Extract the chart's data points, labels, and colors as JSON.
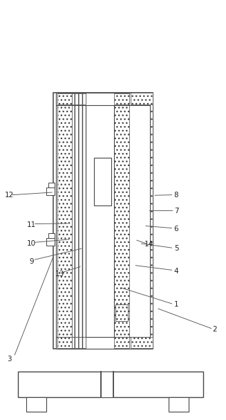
{
  "bg": "white",
  "lc": "#444444",
  "annotations": {
    "1": {
      "lp": [
        0.78,
        0.275
      ],
      "l1": [
        0.76,
        0.277
      ],
      "l2": [
        0.535,
        0.315
      ]
    },
    "2": {
      "lp": [
        0.95,
        0.215
      ],
      "l1": [
        0.935,
        0.218
      ],
      "l2": [
        0.7,
        0.265
      ]
    },
    "3": {
      "lp": [
        0.04,
        0.145
      ],
      "l1": [
        0.065,
        0.155
      ],
      "l2": [
        0.235,
        0.388
      ]
    },
    "4": {
      "lp": [
        0.78,
        0.355
      ],
      "l1": [
        0.76,
        0.357
      ],
      "l2": [
        0.6,
        0.368
      ]
    },
    "5": {
      "lp": [
        0.78,
        0.408
      ],
      "l1": [
        0.76,
        0.41
      ],
      "l2": [
        0.625,
        0.42
      ]
    },
    "6": {
      "lp": [
        0.78,
        0.455
      ],
      "l1": [
        0.76,
        0.457
      ],
      "l2": [
        0.645,
        0.462
      ]
    },
    "7": {
      "lp": [
        0.78,
        0.498
      ],
      "l1": [
        0.76,
        0.499
      ],
      "l2": [
        0.66,
        0.499
      ]
    },
    "8": {
      "lp": [
        0.78,
        0.535
      ],
      "l1": [
        0.76,
        0.536
      ],
      "l2": [
        0.685,
        0.535
      ]
    },
    "9": {
      "lp": [
        0.14,
        0.378
      ],
      "l1": [
        0.155,
        0.382
      ],
      "l2": [
        0.36,
        0.408
      ]
    },
    "10": {
      "lp": [
        0.14,
        0.42
      ],
      "l1": [
        0.155,
        0.423
      ],
      "l2": [
        0.305,
        0.43
      ]
    },
    "11": {
      "lp": [
        0.14,
        0.465
      ],
      "l1": [
        0.155,
        0.467
      ],
      "l2": [
        0.3,
        0.468
      ]
    },
    "12": {
      "lp": [
        0.04,
        0.535
      ],
      "l1": [
        0.055,
        0.536
      ],
      "l2": [
        0.23,
        0.542
      ]
    },
    "13": {
      "lp": [
        0.265,
        0.348
      ],
      "l1": [
        0.278,
        0.352
      ],
      "l2": [
        0.355,
        0.365
      ]
    },
    "14": {
      "lp": [
        0.66,
        0.418
      ],
      "l1": [
        0.648,
        0.42
      ],
      "l2": [
        0.605,
        0.428
      ]
    }
  },
  "font_size": 7.5
}
